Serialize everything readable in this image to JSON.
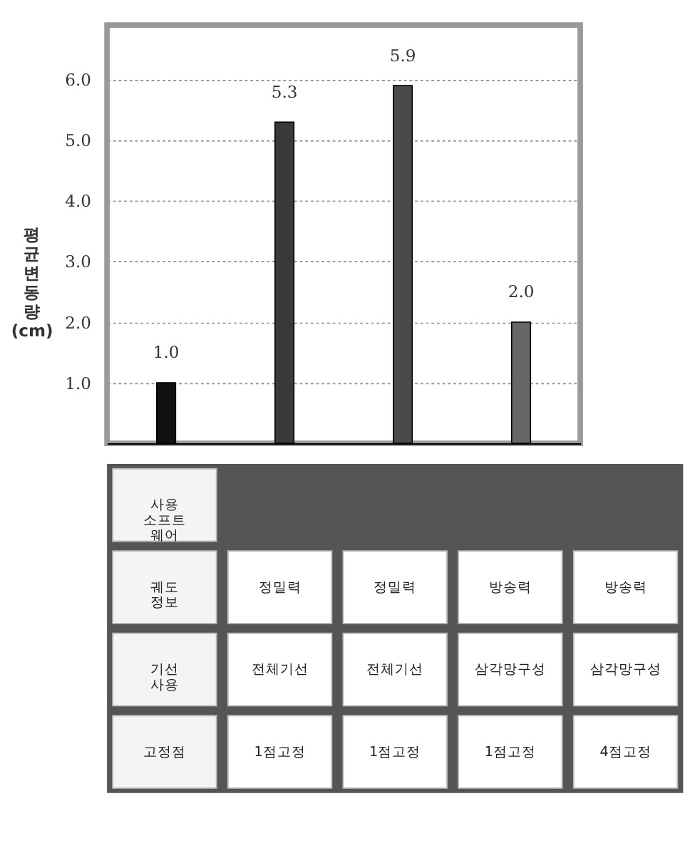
{
  "chart_data": [
    {
      "type": "bar",
      "ylabel": "평균변동량(cm)",
      "categories": [
        null,
        null,
        null,
        null
      ],
      "values": [
        1.0,
        5.3,
        5.9,
        2.0
      ],
      "colors": [
        "#111111",
        "#3a3a3a",
        "#4a4a4a",
        "#666666"
      ],
      "value_labels": [
        "1.0",
        "5.3",
        "5.9",
        "2.0"
      ],
      "ylim": [
        0,
        6.9
      ],
      "yticks": [
        {
          "value": 1,
          "label": "1.0"
        },
        {
          "value": 2,
          "label": "2.0"
        },
        {
          "value": 3,
          "label": "3.0"
        },
        {
          "value": 4,
          "label": "4.0"
        },
        {
          "value": 5,
          "label": "5.0"
        },
        {
          "value": 6,
          "label": "6.0"
        }
      ],
      "grid": "y",
      "tick_labels": "y"
    },
    {
      "type": "other",
      "categories": [
        null,
        null,
        null,
        null
      ],
      "y_categories": [
        "사용\n소프트\n웨어",
        "궤도\n정보",
        "기선\n사용",
        "고정점"
      ],
      "cell_labels": [
        [
          null,
          null,
          null,
          null
        ],
        [
          "정밀력",
          "정밀력",
          "방송력",
          "방송력"
        ],
        [
          "전체기선",
          "전체기선",
          "삼각망구성",
          "삼각망구성"
        ],
        [
          "1점고정",
          "1점고정",
          "1점고정",
          "4점고정"
        ]
      ]
    }
  ]
}
